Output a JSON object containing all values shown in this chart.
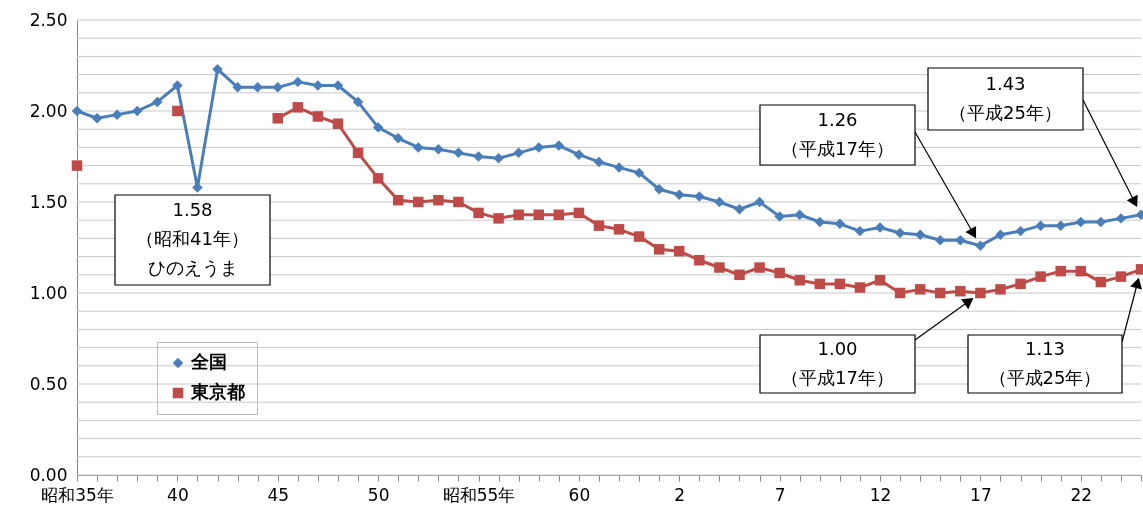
{
  "chart_data": {
    "type": "line",
    "categories": [
      "昭和35年",
      null,
      null,
      null,
      null,
      "40",
      null,
      null,
      null,
      null,
      "45",
      null,
      null,
      null,
      null,
      "50",
      null,
      null,
      null,
      null,
      "昭和55年",
      null,
      null,
      null,
      null,
      "60",
      null,
      null,
      null,
      null,
      "2",
      null,
      null,
      null,
      null,
      "7",
      null,
      null,
      null,
      null,
      "12",
      null,
      null,
      null,
      null,
      "17",
      null,
      null,
      null,
      null,
      "22",
      null,
      null,
      null
    ],
    "series": [
      {
        "name": "全国",
        "color": "#4a7ebb",
        "marker": "diamond",
        "values": [
          2.0,
          1.96,
          1.98,
          2.0,
          2.05,
          2.14,
          1.58,
          2.23,
          2.13,
          2.13,
          2.13,
          2.16,
          2.14,
          2.14,
          2.05,
          1.91,
          1.85,
          1.8,
          1.79,
          1.77,
          1.75,
          1.74,
          1.77,
          1.8,
          1.81,
          1.76,
          1.72,
          1.69,
          1.66,
          1.57,
          1.54,
          1.53,
          1.5,
          1.46,
          1.5,
          1.42,
          1.43,
          1.39,
          1.38,
          1.34,
          1.36,
          1.33,
          1.32,
          1.29,
          1.29,
          1.26,
          1.32,
          1.34,
          1.37,
          1.37,
          1.39,
          1.39,
          1.41,
          1.43
        ]
      },
      {
        "name": "東京都",
        "color": "#be4b48",
        "marker": "square",
        "values": [
          1.7,
          null,
          null,
          null,
          null,
          2.0,
          null,
          null,
          null,
          null,
          1.96,
          2.02,
          1.97,
          1.93,
          1.77,
          1.63,
          1.51,
          1.5,
          1.51,
          1.5,
          1.44,
          1.41,
          1.43,
          1.43,
          1.43,
          1.44,
          1.37,
          1.35,
          1.31,
          1.24,
          1.23,
          1.18,
          1.14,
          1.1,
          1.14,
          1.11,
          1.07,
          1.05,
          1.05,
          1.03,
          1.07,
          1.0,
          1.02,
          1.0,
          1.01,
          1.0,
          1.02,
          1.05,
          1.09,
          1.12,
          1.12,
          1.06,
          1.09,
          1.13
        ]
      }
    ],
    "ylim": [
      0,
      2.5
    ],
    "yticks": [
      {
        "value": 0,
        "label": "0.00"
      },
      {
        "value": 0.1,
        "label": null
      },
      {
        "value": 0.2,
        "label": null
      },
      {
        "value": 0.3,
        "label": null
      },
      {
        "value": 0.4,
        "label": null
      },
      {
        "value": 0.5,
        "label": "0.50"
      },
      {
        "value": 0.6,
        "label": null
      },
      {
        "value": 0.7,
        "label": null
      },
      {
        "value": 0.8,
        "label": null
      },
      {
        "value": 0.9,
        "label": null
      },
      {
        "value": 1,
        "label": "1.00"
      },
      {
        "value": 1.1,
        "label": null
      },
      {
        "value": 1.2,
        "label": null
      },
      {
        "value": 1.3,
        "label": null
      },
      {
        "value": 1.4,
        "label": null
      },
      {
        "value": 1.5,
        "label": "1.50"
      },
      {
        "value": 1.6,
        "label": null
      },
      {
        "value": 1.7,
        "label": null
      },
      {
        "value": 1.8,
        "label": null
      },
      {
        "value": 1.9,
        "label": null
      },
      {
        "value": 2,
        "label": "2.00"
      },
      {
        "value": 2.1,
        "label": null
      },
      {
        "value": 2.2,
        "label": null
      },
      {
        "value": 2.3,
        "label": null
      },
      {
        "value": 2.4,
        "label": null
      },
      {
        "value": 2.5,
        "label": "2.50"
      }
    ],
    "grid": "y",
    "legend": "bottom left",
    "line_style": "solid",
    "annotations": [
      "1.58（昭和41年）ひのえうま",
      "1.26（平成17年）",
      "1.43（平成25年）",
      "1.00（平成17年）",
      "1.13（平成25年）"
    ]
  }
}
